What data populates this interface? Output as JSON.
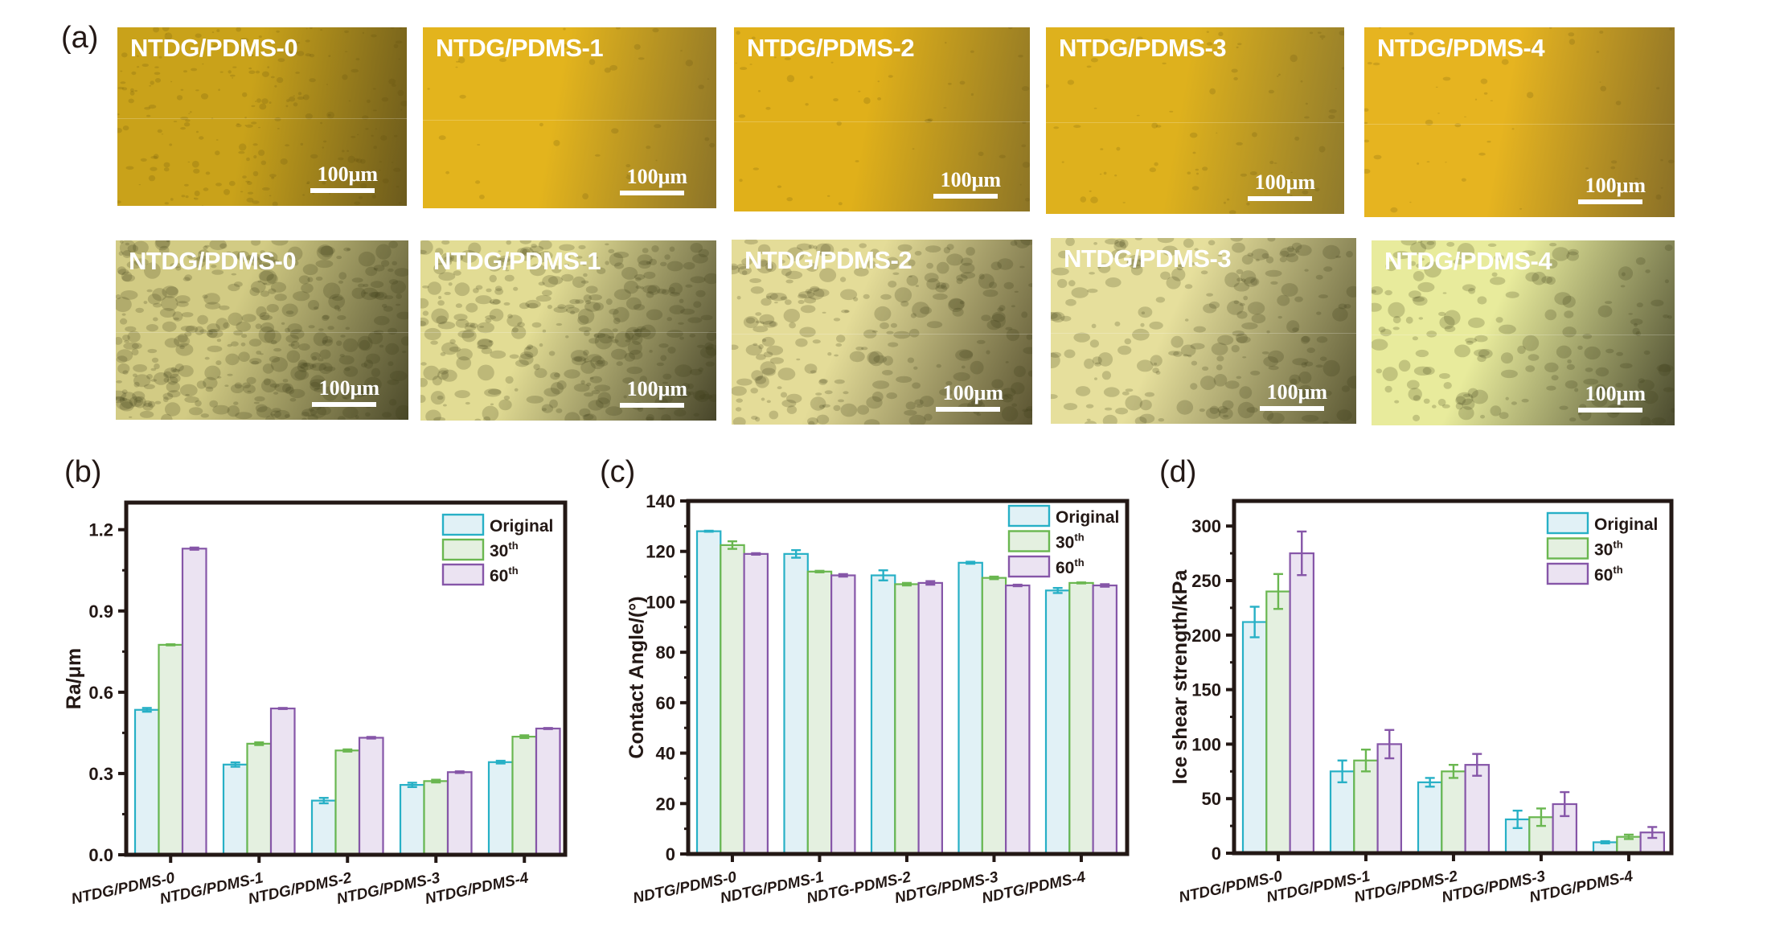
{
  "figure": {
    "panel_labels": {
      "a": "(a)",
      "b": "(b)",
      "c": "(c)",
      "d": "(d)"
    },
    "micrographs": {
      "scale_label": "100μm",
      "top_row": [
        {
          "title": "NTDG/PDMS-0",
          "tone": "#c9a21a",
          "dark": "#6b5a1d",
          "speckle": 0.9
        },
        {
          "title": "NTDG/PDMS-1",
          "tone": "#e3b41d",
          "dark": "#8c7428",
          "speckle": 0.15
        },
        {
          "title": "NTDG/PDMS-2",
          "tone": "#e0b01a",
          "dark": "#8d7526",
          "speckle": 0.2
        },
        {
          "title": "NTDG/PDMS-3",
          "tone": "#deb11d",
          "dark": "#8f7a2c",
          "speckle": 0.3
        },
        {
          "title": "NTDG/PDMS-4",
          "tone": "#e6b420",
          "dark": "#8a7027",
          "speckle": 0.2
        }
      ],
      "bottom_row": [
        {
          "title": "NTDG/PDMS-0",
          "tone": "#d2cb84",
          "dark": "#4c4a2b",
          "speckle": 0.9
        },
        {
          "title": "NTDG/PDMS-1",
          "tone": "#e2dc94",
          "dark": "#47452a",
          "speckle": 0.8
        },
        {
          "title": "NTDG/PDMS-2",
          "tone": "#e4dc98",
          "dark": "#5a5432",
          "speckle": 0.6
        },
        {
          "title": "NTDG/PDMS-3",
          "tone": "#e6df9c",
          "dark": "#5b5834",
          "speckle": 0.5
        },
        {
          "title": "NTDG/PDMS-4",
          "tone": "#e8eb9c",
          "dark": "#4a4a2e",
          "speckle": 0.4
        }
      ]
    },
    "series_style": {
      "Original": {
        "stroke": "#27b0c6",
        "fill": "#e1f1f6"
      },
      "30th": {
        "stroke": "#6ab750",
        "fill": "#e4f0e0"
      },
      "60th": {
        "stroke": "#8656a8",
        "fill": "#ebe3f2"
      }
    },
    "legend_entries": [
      {
        "base": "Original",
        "sup": ""
      },
      {
        "base": "30",
        "sup": "th"
      },
      {
        "base": "60",
        "sup": "th"
      }
    ]
  },
  "chart_data": [
    {
      "id": "b",
      "type": "bar",
      "title": "",
      "xlabel": "",
      "ylabel": "Ra/μm",
      "ylim": [
        0,
        1.3
      ],
      "yticks": [
        0.0,
        0.3,
        0.6,
        0.9,
        1.2
      ],
      "ytick_labels": [
        "0.0",
        "0.3",
        "0.6",
        "0.9",
        "1.2"
      ],
      "grid": false,
      "legend_position": "top-right",
      "categories": [
        "NTDG/PDMS-0",
        "NTDG/PDMS-1",
        "NTDG/PDMS-2",
        "NTDG/PDMS-3",
        "NTDG/PDMS-4"
      ],
      "series": [
        {
          "name": "Original",
          "values": [
            0.535,
            0.333,
            0.2,
            0.258,
            0.342
          ],
          "errors": [
            0.007,
            0.008,
            0.01,
            0.008,
            0.005
          ]
        },
        {
          "name": "30th",
          "values": [
            0.775,
            0.41,
            0.385,
            0.272,
            0.436
          ],
          "errors": [
            0.002,
            0.005,
            0.004,
            0.005,
            0.005
          ]
        },
        {
          "name": "60th",
          "values": [
            1.13,
            0.54,
            0.432,
            0.305,
            0.466
          ],
          "errors": [
            0.004,
            0.002,
            0.003,
            0.003,
            0.002
          ]
        }
      ]
    },
    {
      "id": "c",
      "type": "bar",
      "title": "",
      "xlabel": "",
      "ylabel": "Contact Angle/(°)",
      "ylim": [
        0,
        140
      ],
      "yticks": [
        0,
        20,
        40,
        60,
        80,
        100,
        120,
        140
      ],
      "ytick_labels": [
        "0",
        "20",
        "40",
        "60",
        "80",
        "100",
        "120",
        "140"
      ],
      "grid": false,
      "legend_position": "top-right",
      "categories": [
        "NDTG/PDMS-0",
        "NDTG/PDMS-1",
        "NDTG-PDMS-2",
        "NDTG/PDMS-3",
        "NDTG/PDMS-4"
      ],
      "series": [
        {
          "name": "Original",
          "values": [
            128.0,
            119.0,
            110.5,
            115.5,
            104.5
          ],
          "errors": [
            0.2,
            1.5,
            2.0,
            0.4,
            1.0
          ]
        },
        {
          "name": "30th",
          "values": [
            122.5,
            112.0,
            107.0,
            109.5,
            107.5
          ],
          "errors": [
            1.5,
            0.3,
            0.5,
            0.5,
            0.2
          ]
        },
        {
          "name": "60th",
          "values": [
            119.0,
            110.5,
            107.5,
            106.5,
            106.5
          ],
          "errors": [
            0.3,
            0.5,
            0.7,
            0.3,
            0.5
          ]
        }
      ]
    },
    {
      "id": "d",
      "type": "bar",
      "title": "",
      "xlabel": "",
      "ylabel": "Ice shear strength/kPa",
      "ylim": [
        0,
        323
      ],
      "yticks": [
        0,
        50,
        100,
        150,
        200,
        250,
        300
      ],
      "ytick_labels": [
        "0",
        "50",
        "100",
        "150",
        "200",
        "250",
        "300"
      ],
      "grid": false,
      "legend_position": "top-right",
      "categories": [
        "NTDG/PDMS-0",
        "NTDG/PDMS-1",
        "NTDG/PDMS-2",
        "NTDG/PDMS-3",
        "NTDG/PDMS-4"
      ],
      "series": [
        {
          "name": "Original",
          "values": [
            212,
            75,
            65,
            31,
            10
          ],
          "errors": [
            14,
            10,
            4,
            8,
            1
          ]
        },
        {
          "name": "30th",
          "values": [
            240,
            85,
            75,
            33,
            15
          ],
          "errors": [
            16,
            10,
            6,
            8,
            2
          ]
        },
        {
          "name": "60th",
          "values": [
            275,
            100,
            81,
            45,
            19
          ],
          "errors": [
            20,
            13,
            10,
            11,
            5
          ]
        }
      ]
    }
  ]
}
